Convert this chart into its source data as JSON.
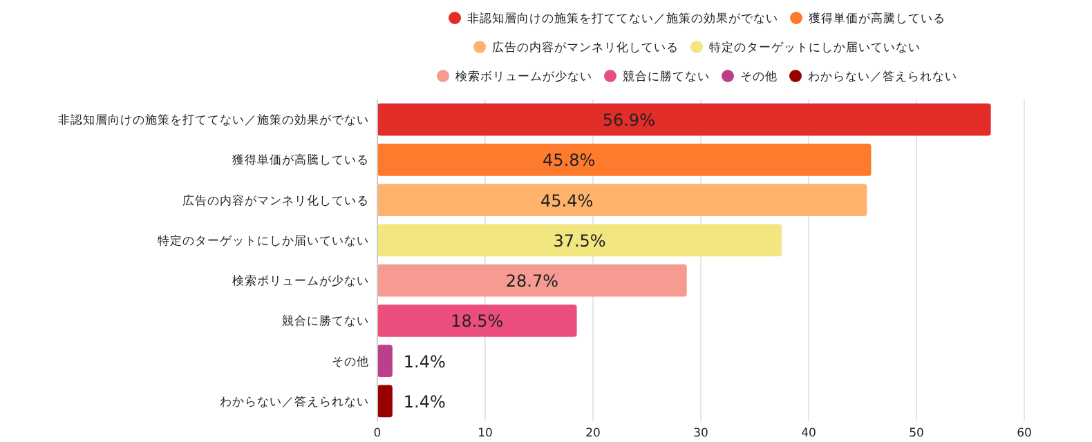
{
  "chart_data": {
    "type": "bar",
    "orientation": "horizontal",
    "stacked": true,
    "categories": [
      "非認知層向けの施策を打ててない／施策の効果がでない",
      "獲得単価が高騰している",
      "広告の内容がマンネリ化している",
      "特定のターゲットにしか届いていない",
      "検索ボリュームが少ない",
      "競合に勝てない",
      "その他",
      "わからない／答えられない"
    ],
    "series": [
      {
        "name": "非認知層向けの施策を打ててない／施策の効果がでない",
        "color": "#e32d28",
        "values": [
          56.9,
          null,
          null,
          null,
          null,
          null,
          null,
          null
        ],
        "value_labels": [
          "56.9%",
          null,
          null,
          null,
          null,
          null,
          null,
          null
        ]
      },
      {
        "name": "獲得単価が高騰している",
        "color": "#fe7a2c",
        "values": [
          null,
          45.8,
          null,
          null,
          null,
          null,
          null,
          null
        ],
        "value_labels": [
          null,
          "45.8%",
          null,
          null,
          null,
          null,
          null,
          null
        ]
      },
      {
        "name": "広告の内容がマンネリ化している",
        "color": "#feb26b",
        "values": [
          null,
          null,
          45.4,
          null,
          null,
          null,
          null,
          null
        ],
        "value_labels": [
          null,
          null,
          "45.4%",
          null,
          null,
          null,
          null,
          null
        ]
      },
      {
        "name": "特定のターゲットにしか届いていない",
        "color": "#f2e680",
        "values": [
          null,
          null,
          null,
          37.5,
          null,
          null,
          null,
          null
        ],
        "value_labels": [
          null,
          null,
          null,
          "37.5%",
          null,
          null,
          null,
          null
        ]
      },
      {
        "name": "検索ボリュームが少ない",
        "color": "#f59b92",
        "values": [
          null,
          null,
          null,
          null,
          28.7,
          null,
          null,
          null
        ],
        "value_labels": [
          null,
          null,
          null,
          null,
          "28.7%",
          null,
          null,
          null
        ]
      },
      {
        "name": "競合に勝てない",
        "color": "#eb4e7c",
        "values": [
          null,
          null,
          null,
          null,
          null,
          18.5,
          null,
          null
        ],
        "value_labels": [
          null,
          null,
          null,
          null,
          null,
          "18.5%",
          null,
          null
        ]
      },
      {
        "name": "その他",
        "color": "#bb3f8d",
        "values": [
          null,
          null,
          null,
          null,
          null,
          null,
          1.4,
          null
        ],
        "value_labels": [
          null,
          null,
          null,
          null,
          null,
          null,
          "1.4%",
          null
        ]
      },
      {
        "name": "わからない／答えられない",
        "color": "#990000",
        "values": [
          null,
          null,
          null,
          null,
          null,
          null,
          null,
          1.4
        ],
        "value_labels": [
          null,
          null,
          null,
          null,
          null,
          null,
          null,
          "1.4%"
        ]
      }
    ],
    "xlim": [
      0,
      60
    ],
    "xticks": [
      0,
      10,
      20,
      30,
      40,
      50,
      60
    ],
    "grid": "x",
    "legend": "top"
  }
}
